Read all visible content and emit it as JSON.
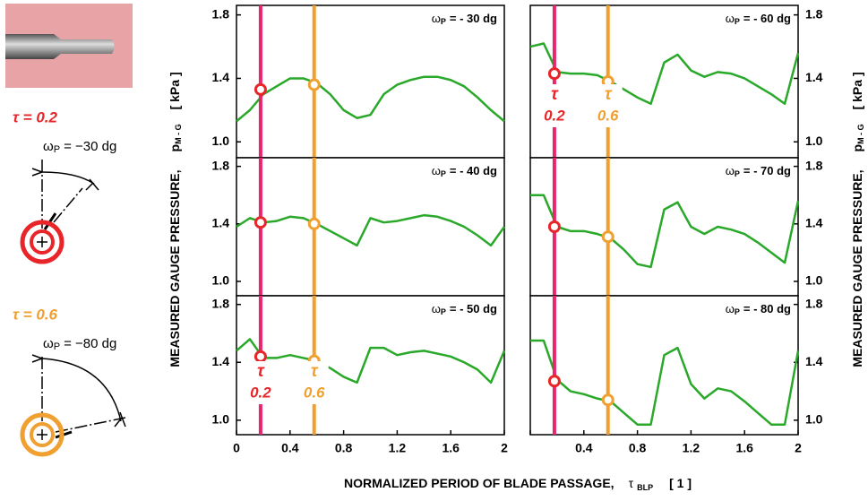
{
  "illustration": {
    "tau_a": "τ = 0.2",
    "omega_a": [
      "ω",
      "P",
      "= −30 dg"
    ],
    "tau_b": "τ = 0.6",
    "omega_b": [
      "ω",
      "P",
      "= −80 dg"
    ]
  },
  "x_label": [
    "NORMALIZED PERIOD OF BLADE PASSAGE,",
    "τ",
    "BLP",
    "[ 1 ]"
  ],
  "y_label_left": [
    "MEASURED GAUGE PRESSURE,",
    "p",
    "M - G",
    "[ kPa ]"
  ],
  "y_label_right": [
    "MEASURED GAUGE PRESSURE,",
    "p",
    "M - G",
    "[ kPa ]"
  ],
  "chart_data": [
    {
      "type": "line",
      "title": [
        "ω",
        "P",
        "= - 30 dg"
      ],
      "xlim": [
        0,
        2
      ],
      "ylim": [
        0.9,
        1.86
      ],
      "yticks": [
        {
          "value": 1,
          "label": "1.0"
        },
        1.4,
        1.8
      ],
      "x": [
        0,
        0.1,
        0.2,
        0.3,
        0.4,
        0.5,
        0.6,
        0.7,
        0.8,
        0.9,
        1,
        1.1,
        1.2,
        1.3,
        1.4,
        1.5,
        1.6,
        1.7,
        1.8,
        1.9,
        2
      ],
      "series": [
        {
          "color": "#2aa82a",
          "values": [
            1.13,
            1.2,
            1.3,
            1.35,
            1.4,
            1.4,
            1.37,
            1.3,
            1.2,
            1.15,
            1.17,
            1.3,
            1.36,
            1.39,
            1.41,
            1.41,
            1.39,
            1.35,
            1.28,
            1.2,
            1.13
          ]
        }
      ],
      "markers": [
        {
          "x": 0.18,
          "color": "#e8266f",
          "ring": "#e8262a"
        },
        {
          "x": 0.58,
          "color": "#f0a030",
          "ring": "#f0a030"
        }
      ],
      "marker_values": [
        1.33,
        1.36
      ]
    },
    {
      "type": "line",
      "title": [
        "ω",
        "P",
        "= - 40 dg"
      ],
      "xlim": [
        0,
        2
      ],
      "ylim": [
        0.9,
        1.86
      ],
      "yticks": [
        {
          "value": 1,
          "label": "1.0"
        },
        1.4,
        1.8
      ],
      "x": [
        0,
        0.1,
        0.2,
        0.3,
        0.4,
        0.5,
        0.6,
        0.7,
        0.8,
        0.9,
        1,
        1.1,
        1.2,
        1.3,
        1.4,
        1.5,
        1.6,
        1.7,
        1.8,
        1.9,
        2
      ],
      "series": [
        {
          "color": "#2aa82a",
          "values": [
            1.38,
            1.44,
            1.41,
            1.42,
            1.45,
            1.44,
            1.4,
            1.35,
            1.3,
            1.25,
            1.44,
            1.41,
            1.42,
            1.44,
            1.46,
            1.45,
            1.42,
            1.38,
            1.32,
            1.25,
            1.38
          ]
        }
      ],
      "markers": [
        {
          "x": 0.18,
          "color": "#e8266f",
          "ring": "#e8262a"
        },
        {
          "x": 0.58,
          "color": "#f0a030",
          "ring": "#f0a030"
        }
      ],
      "marker_values": [
        1.41,
        1.4
      ]
    },
    {
      "type": "line",
      "title": [
        "ω",
        "P",
        "= - 50 dg"
      ],
      "xlim": [
        0,
        2
      ],
      "ylim": [
        0.9,
        1.86
      ],
      "yticks": [
        {
          "value": 1,
          "label": "1.0"
        },
        1.4,
        1.8
      ],
      "xticks": [
        0,
        0.4,
        0.8,
        1.2,
        1.6,
        2
      ],
      "x": [
        0,
        0.1,
        0.2,
        0.3,
        0.4,
        0.5,
        0.6,
        0.7,
        0.8,
        0.9,
        1,
        1.1,
        1.2,
        1.3,
        1.4,
        1.5,
        1.6,
        1.7,
        1.8,
        1.9,
        2
      ],
      "series": [
        {
          "color": "#2aa82a",
          "values": [
            1.48,
            1.56,
            1.43,
            1.43,
            1.45,
            1.43,
            1.41,
            1.36,
            1.3,
            1.26,
            1.5,
            1.5,
            1.45,
            1.47,
            1.48,
            1.46,
            1.44,
            1.4,
            1.35,
            1.26,
            1.48
          ]
        }
      ],
      "markers": [
        {
          "x": 0.18,
          "color": "#e8266f",
          "ring": "#e8262a"
        },
        {
          "x": 0.58,
          "color": "#f0a030",
          "ring": "#f0a030"
        }
      ],
      "marker_values": [
        1.44,
        1.41
      ],
      "marker_labels": [
        {
          "symbol": "τ",
          "label": "0.2"
        },
        {
          "symbol": "τ",
          "label": "0.6"
        }
      ]
    },
    {
      "type": "line",
      "title": [
        "ω",
        "P",
        "= - 60 dg"
      ],
      "xlim": [
        0,
        2
      ],
      "ylim": [
        0.9,
        1.86
      ],
      "yticks": [
        {
          "value": 1,
          "label": "1.0"
        },
        1.4,
        1.8
      ],
      "x": [
        0,
        0.1,
        0.2,
        0.3,
        0.4,
        0.5,
        0.6,
        0.7,
        0.8,
        0.9,
        1,
        1.1,
        1.2,
        1.3,
        1.4,
        1.5,
        1.6,
        1.7,
        1.8,
        1.9,
        2
      ],
      "series": [
        {
          "color": "#2aa82a",
          "values": [
            1.6,
            1.62,
            1.44,
            1.43,
            1.43,
            1.42,
            1.38,
            1.33,
            1.28,
            1.24,
            1.5,
            1.55,
            1.45,
            1.41,
            1.44,
            1.43,
            1.4,
            1.35,
            1.3,
            1.24,
            1.56
          ]
        }
      ],
      "markers": [
        {
          "x": 0.18,
          "color": "#e8266f",
          "ring": "#e8262a"
        },
        {
          "x": 0.58,
          "color": "#f0a030",
          "ring": "#f0a030"
        }
      ],
      "marker_values": [
        1.43,
        1.38
      ],
      "marker_labels": [
        {
          "symbol": "τ",
          "label": "0.2"
        },
        {
          "symbol": "τ",
          "label": "0.6"
        }
      ]
    },
    {
      "type": "line",
      "title": [
        "ω",
        "P",
        "= - 70 dg"
      ],
      "xlim": [
        0,
        2
      ],
      "ylim": [
        0.9,
        1.86
      ],
      "yticks": [
        {
          "value": 1,
          "label": "1.0"
        },
        1.4,
        1.8
      ],
      "x": [
        0,
        0.1,
        0.2,
        0.3,
        0.4,
        0.5,
        0.6,
        0.7,
        0.8,
        0.9,
        1,
        1.1,
        1.2,
        1.3,
        1.4,
        1.5,
        1.6,
        1.7,
        1.8,
        1.9,
        2
      ],
      "series": [
        {
          "color": "#2aa82a",
          "values": [
            1.6,
            1.6,
            1.38,
            1.35,
            1.35,
            1.33,
            1.3,
            1.22,
            1.12,
            1.1,
            1.5,
            1.55,
            1.38,
            1.33,
            1.38,
            1.36,
            1.33,
            1.27,
            1.2,
            1.13,
            1.56
          ]
        }
      ],
      "markers": [
        {
          "x": 0.18,
          "color": "#e8266f",
          "ring": "#e8262a"
        },
        {
          "x": 0.58,
          "color": "#f0a030",
          "ring": "#f0a030"
        }
      ],
      "marker_values": [
        1.38,
        1.31
      ]
    },
    {
      "type": "line",
      "title": [
        "ω",
        "P",
        "= - 80 dg"
      ],
      "xlim": [
        0,
        2
      ],
      "ylim": [
        0.9,
        1.86
      ],
      "yticks": [
        {
          "value": 1,
          "label": "1.0"
        },
        1.4,
        1.8
      ],
      "xticks": [
        0,
        0.4,
        0.8,
        1.2,
        1.6,
        2
      ],
      "x": [
        0,
        0.1,
        0.2,
        0.3,
        0.4,
        0.5,
        0.6,
        0.7,
        0.8,
        0.9,
        1,
        1.1,
        1.2,
        1.3,
        1.4,
        1.5,
        1.6,
        1.7,
        1.8,
        1.9,
        2
      ],
      "series": [
        {
          "color": "#2aa82a",
          "values": [
            1.55,
            1.55,
            1.28,
            1.2,
            1.18,
            1.15,
            1.13,
            1.05,
            0.97,
            0.97,
            1.45,
            1.5,
            1.25,
            1.15,
            1.22,
            1.2,
            1.13,
            1.05,
            0.97,
            0.97,
            1.48
          ]
        }
      ],
      "markers": [
        {
          "x": 0.18,
          "color": "#e8266f",
          "ring": "#e8262a"
        },
        {
          "x": 0.58,
          "color": "#f0a030",
          "ring": "#f0a030"
        }
      ],
      "marker_values": [
        1.27,
        1.14
      ]
    }
  ]
}
